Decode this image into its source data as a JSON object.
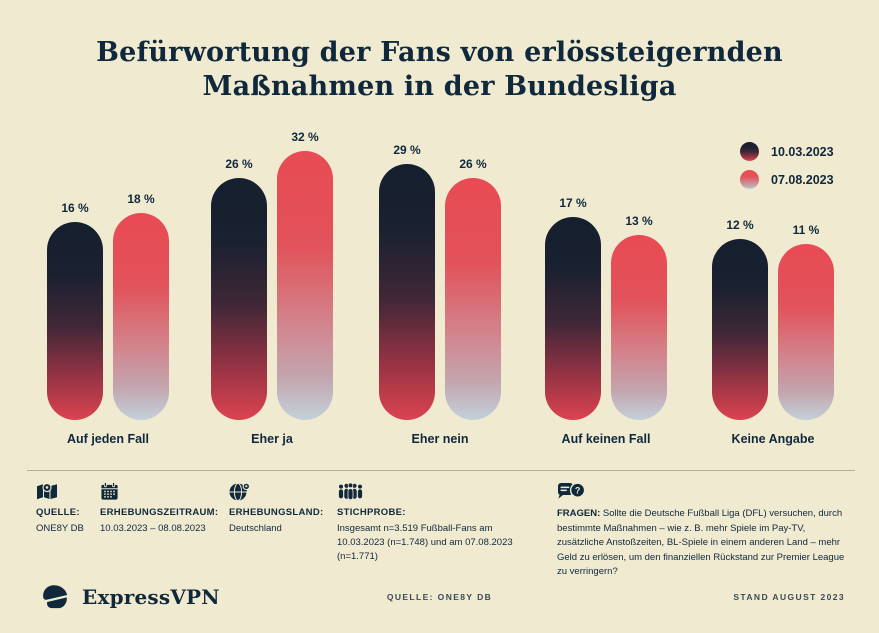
{
  "title": {
    "line1": "Befürwortung der Fans von erlössteigernden",
    "line2": "Maßnahmen in der Bundesliga"
  },
  "chart_data": {
    "type": "bar",
    "title": "Befürwortung der Fans von erlössteigernden Maßnahmen in der Bundesliga",
    "categories": [
      "Auf jeden Fall",
      "Eher ja",
      "Eher nein",
      "Auf keinen Fall",
      "Keine Angabe"
    ],
    "series": [
      {
        "name": "10.03.2023",
        "values": [
          16,
          26,
          29,
          17,
          12
        ]
      },
      {
        "name": "07.08.2023",
        "values": [
          18,
          32,
          26,
          13,
          11
        ]
      }
    ],
    "value_suffix": " %",
    "unit": "percent",
    "xlabel": "",
    "ylabel": "",
    "ylim": [
      0,
      32
    ],
    "grid": false,
    "legend_position": "top-right",
    "bar_shape": "pill"
  },
  "colors": {
    "background": "#f0ead1",
    "navy": "#10283c",
    "bar_series_1": [
      {
        "c": "#151f2d",
        "p": 0
      },
      {
        "c": "#1a2130",
        "p": 26
      },
      {
        "c": "#3f2737",
        "p": 52
      },
      {
        "c": "#963344",
        "p": 78
      },
      {
        "c": "#dc4350",
        "p": 100
      }
    ],
    "bar_series_2": [
      {
        "c": "#e84b53",
        "p": 0
      },
      {
        "c": "#e2525a",
        "p": 35
      },
      {
        "c": "#d2858e",
        "p": 65
      },
      {
        "c": "#c3a5ae",
        "p": 84
      },
      {
        "c": "#c3d1da",
        "p": 100
      }
    ]
  },
  "footer": {
    "source": {
      "icon": "map-pin-icon",
      "label": "QUELLE:",
      "value": "ONE8Y DB"
    },
    "period": {
      "icon": "calendar-icon",
      "label": "ERHEBUNGSZEITRAUM:",
      "value": "10.03.2023 – 08.08.2023"
    },
    "country": {
      "icon": "globe-icon",
      "label": "ERHEBUNGSLAND:",
      "value": "Deutschland"
    },
    "sample": {
      "icon": "people-icon",
      "label": "STICHPROBE:",
      "value": "Insgesamt n=3.519 Fußball-Fans am 10.03.2023 (n=1.748) und am 07.08.2023 (n=1.771)"
    },
    "question": {
      "icon": "speech-bubbles-icon",
      "label": "FRAGEN:",
      "value": "Sollte die Deutsche Fußball Liga (DFL) versuchen, durch bestimmte Maßnahmen – wie z. B. mehr Spiele im Pay-TV, zusätzliche Anstoßzeiten, BL-Spiele in einem anderen Land – mehr Geld zu erlösen, um den finanziellen Rückstand zur Premier League zu verringern?"
    }
  },
  "bottom_bar": {
    "brand": "ExpressVPN",
    "source_note": "QUELLE: ONE8Y DB",
    "stand_note": "STAND AUGUST 2023"
  }
}
